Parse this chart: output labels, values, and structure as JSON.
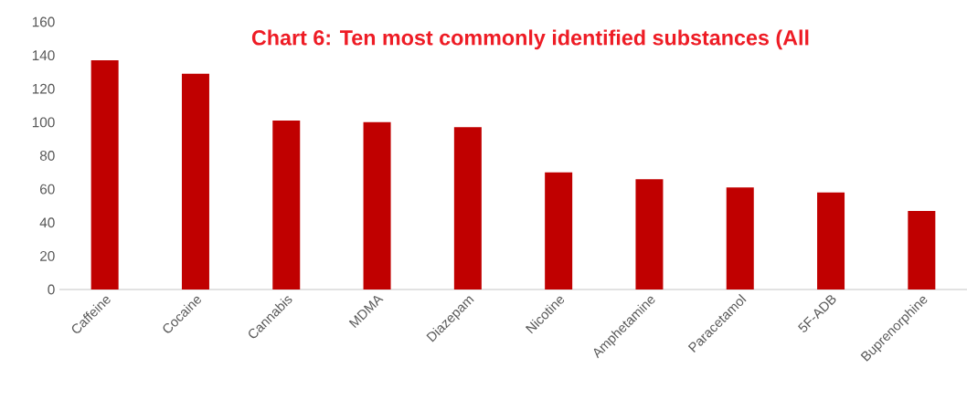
{
  "chart_data": {
    "type": "bar",
    "title": "Chart 6: Ten most commonly identified substances (All",
    "categories": [
      "Caffeine",
      "Cocaine",
      "Cannabis",
      "MDMA",
      "Diazepam",
      "Nicotine",
      "Amphetamine",
      "Paracetamol",
      "5F-ADB",
      "Buprenorphine"
    ],
    "values": [
      137,
      129,
      101,
      100,
      97,
      70,
      66,
      61,
      58,
      47
    ],
    "color": "#c00000",
    "ylim": [
      0,
      160
    ],
    "yticks": [
      0,
      20,
      40,
      60,
      80,
      100,
      120,
      140,
      160
    ]
  }
}
